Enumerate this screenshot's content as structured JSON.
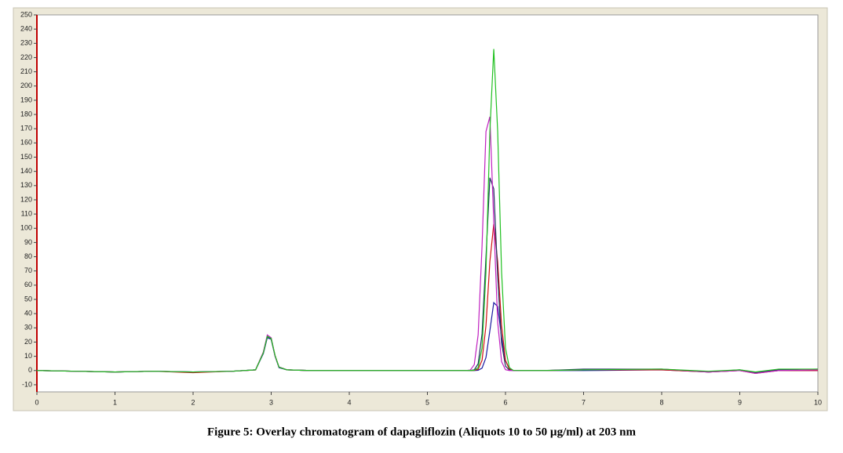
{
  "chart_data": {
    "type": "line",
    "caption": "Figure 5: Overlay chromatogram of dapagliflozin (Aliquots 10 to 50 µg/ml) at 203 nm",
    "x": [
      0,
      0.5,
      1,
      1.5,
      2,
      2.5,
      2.8,
      2.9,
      2.95,
      3,
      3.05,
      3.1,
      3.2,
      3.5,
      4,
      5,
      5.5,
      5.55,
      5.6,
      5.65,
      5.7,
      5.75,
      5.8,
      5.85,
      5.9,
      5.95,
      6,
      6.05,
      6.1,
      6.2,
      6.5,
      7,
      8,
      8.6,
      9,
      9.2,
      9.5,
      10
    ],
    "series": [
      {
        "color": "#1a1aa0",
        "values": [
          0,
          -0.5,
          -1,
          -0.5,
          -1,
          -0.5,
          0.5,
          12,
          23,
          22,
          10,
          2,
          0.5,
          0,
          0,
          0,
          0,
          0,
          0,
          0.2,
          1.7,
          9.1,
          28,
          47.7,
          45,
          23.5,
          6.8,
          1.1,
          0.1,
          0,
          0,
          0,
          0.5,
          -1,
          0,
          -1.5,
          0,
          0
        ]
      },
      {
        "color": "#d01010",
        "values": [
          0,
          -0.5,
          -1,
          -0.5,
          -1.5,
          -0.5,
          0.4,
          13,
          24,
          22.5,
          10.5,
          2.4,
          0.5,
          0,
          0,
          0,
          0,
          0,
          0.1,
          0.9,
          7.2,
          31.5,
          76.6,
          103,
          76.6,
          31.5,
          7.2,
          0.9,
          0.1,
          0,
          0,
          0.5,
          0.5,
          -1,
          0,
          -2,
          0,
          0
        ]
      },
      {
        "color": "#203060",
        "values": [
          0,
          -0.5,
          -1,
          -0.5,
          -1,
          -0.5,
          0.5,
          12.5,
          24,
          22,
          10,
          2.4,
          0.5,
          0,
          0,
          0,
          0,
          0,
          0.5,
          4.7,
          25.8,
          79.5,
          135.5,
          127.7,
          66.6,
          19.2,
          3.1,
          0.3,
          0,
          0,
          0,
          1,
          1,
          -1,
          0.5,
          -1.5,
          0.5,
          1
        ]
      },
      {
        "color": "#c020c0",
        "values": [
          0,
          -0.5,
          -1,
          -0.5,
          -1,
          -0.5,
          0.5,
          13,
          25,
          23,
          10,
          2.5,
          0.5,
          0,
          0,
          0,
          0,
          0.4,
          4.1,
          25.2,
          87.7,
          168,
          178.4,
          104.7,
          34,
          6.2,
          0.6,
          0,
          0,
          0,
          0,
          0.5,
          1,
          -1,
          0,
          -2,
          0,
          0.5
        ]
      },
      {
        "color": "#20c020",
        "values": [
          0,
          -0.5,
          -1,
          -0.5,
          -1,
          -0.5,
          0.5,
          12.5,
          24,
          22.5,
          10.5,
          2.4,
          0.5,
          0,
          0,
          0,
          0,
          0,
          0.2,
          2,
          15.8,
          69.2,
          168,
          226,
          168,
          69.2,
          15.8,
          2,
          0.1,
          0,
          0,
          0.5,
          1,
          -0.5,
          0.5,
          -1,
          1,
          1
        ]
      }
    ],
    "xlim": [
      0,
      10
    ],
    "xticks": [
      0,
      1,
      2,
      3,
      4,
      5,
      6,
      7,
      8,
      9,
      10
    ],
    "ylim": [
      -15,
      250
    ],
    "yticks": [
      -10,
      0,
      10,
      20,
      30,
      40,
      50,
      60,
      70,
      80,
      90,
      100,
      110,
      120,
      130,
      140,
      150,
      160,
      170,
      180,
      190,
      200,
      210,
      220,
      230,
      240,
      250
    ]
  }
}
